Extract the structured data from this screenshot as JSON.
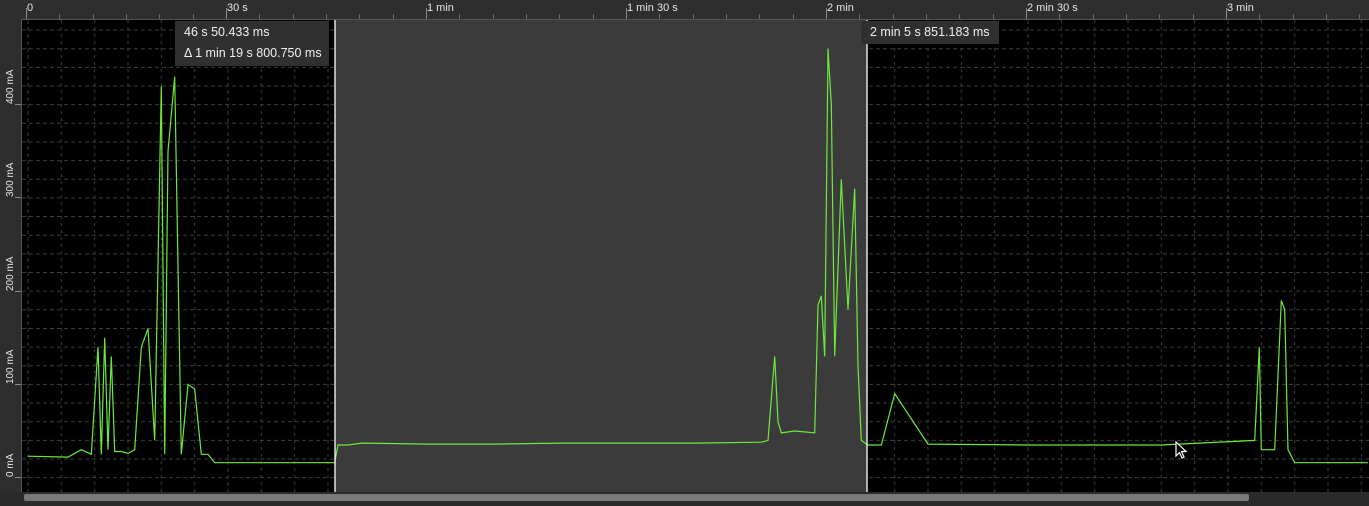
{
  "timeline": {
    "ticks": [
      "0",
      "30 s",
      "1 min",
      "1 min 30 s",
      "2 min",
      "2 min 30 s",
      "3 min"
    ],
    "tick_seconds": [
      0,
      30,
      60,
      90,
      120,
      150,
      180
    ]
  },
  "yaxis": {
    "labels": [
      "0 mA",
      "100 mA",
      "200 mA",
      "300 mA",
      "400 mA"
    ],
    "values": [
      0,
      100,
      200,
      300,
      400
    ]
  },
  "markers": {
    "start_label": "46 s 50.433 ms",
    "delta_label": "Δ 1 min 19 s 800.750 ms",
    "end_label": "2 min 5 s 851.183 ms",
    "start_seconds": 46.05,
    "end_seconds": 125.85
  },
  "colors": {
    "background": "#000000",
    "selection": "#3b3b3b",
    "trace": "#6ee83c",
    "grid": "#3c3c3c",
    "marker_line": "#ffffff"
  },
  "chart_data": {
    "type": "line",
    "title": "",
    "xlabel": "",
    "ylabel": "",
    "xlim_seconds": [
      0,
      201
    ],
    "ylim": [
      -8,
      448
    ],
    "grid": true,
    "series": [
      {
        "x": [
          0,
          6,
          8,
          9.5,
          10.5,
          11,
          11.5,
          12,
          12.5,
          13,
          14,
          15,
          16,
          17,
          17.5,
          18,
          19,
          20,
          20.5,
          21,
          22,
          23,
          24,
          25,
          26,
          27,
          28,
          30,
          40,
          46,
          46.5,
          47,
          48,
          50,
          60,
          70,
          80,
          90,
          100,
          110,
          111,
          112,
          112.5,
          113,
          115,
          118,
          118.5,
          119,
          119.5,
          120,
          120.5,
          121,
          122,
          123,
          124,
          124.5,
          125,
          126,
          128,
          130,
          135,
          150,
          170,
          184,
          184.7,
          185,
          187,
          188,
          188.5,
          189,
          190,
          201
        ],
        "values": [
          3,
          2,
          10,
          5,
          120,
          5,
          130,
          10,
          110,
          8,
          8,
          6,
          10,
          120,
          130,
          140,
          20,
          400,
          5,
          330,
          410,
          5,
          80,
          75,
          5,
          5,
          -4,
          -4,
          -4,
          -4,
          15,
          15,
          15,
          17,
          16,
          16,
          17,
          17,
          17,
          18,
          20,
          110,
          40,
          28,
          30,
          28,
          165,
          175,
          110,
          440,
          380,
          110,
          300,
          160,
          290,
          100,
          20,
          15,
          15,
          70,
          16,
          15,
          15,
          20,
          120,
          10,
          10,
          170,
          160,
          10,
          -4,
          -4
        ]
      }
    ]
  }
}
